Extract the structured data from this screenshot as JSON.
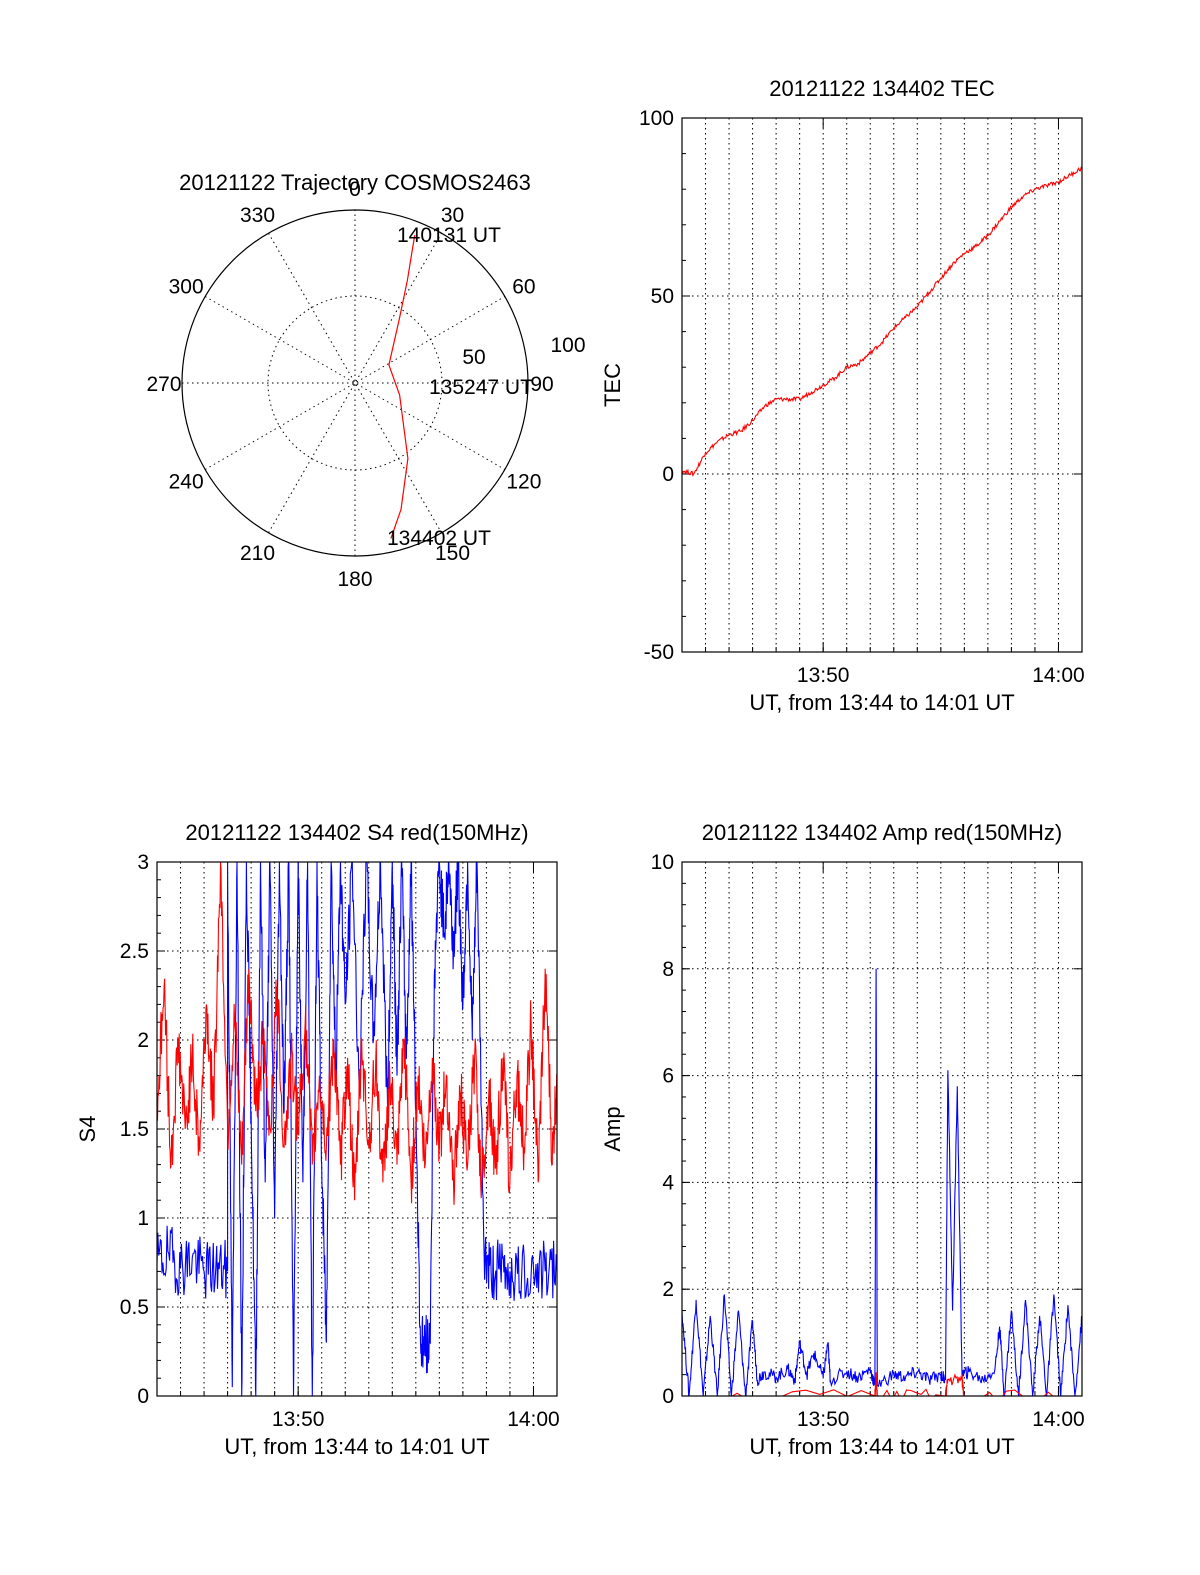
{
  "chart_data": [
    {
      "type": "scatter",
      "subtype": "polar-trajectory",
      "title": "20121122 Trajectory COSMOS2463",
      "angle_labels": [
        "0",
        "30",
        "60",
        "90",
        "120",
        "150",
        "180",
        "210",
        "240",
        "270",
        "300",
        "330"
      ],
      "radial_labels": [
        "50",
        "100"
      ],
      "start_label": "134402 UT",
      "mid_label": "135247 UT",
      "end_label": "140131 UT",
      "trajectory": [
        {
          "az": 167,
          "el": 7
        },
        {
          "az": 160,
          "el": 20
        },
        {
          "az": 145,
          "el": 42
        },
        {
          "az": 105,
          "el": 66
        },
        {
          "az": 62,
          "el": 70
        },
        {
          "az": 35,
          "el": 50
        },
        {
          "az": 27,
          "el": 30
        },
        {
          "az": 23,
          "el": 13
        },
        {
          "az": 22,
          "el": 7
        }
      ],
      "series_color": "#ff0000"
    },
    {
      "type": "line",
      "title": "20121122 134402 TEC",
      "ylabel": "TEC",
      "xlabel": "UT, from 13:44 to 14:01 UT",
      "x_ticks": [
        {
          "v": 50,
          "label": "13:50"
        },
        {
          "v": 60,
          "label": "14:00"
        }
      ],
      "y_ticks": [
        "-50",
        "0",
        "50",
        "100"
      ],
      "xlim": [
        44,
        61
      ],
      "ylim": [
        -50,
        100
      ],
      "grid": true,
      "series": [
        {
          "color": "#ff0000",
          "points": [
            [
              44.0,
              1
            ],
            [
              44.5,
              0
            ],
            [
              45.0,
              6
            ],
            [
              45.5,
              9
            ],
            [
              46.0,
              11
            ],
            [
              46.5,
              12
            ],
            [
              47.0,
              15
            ],
            [
              47.5,
              19
            ],
            [
              48.0,
              21
            ],
            [
              48.5,
              21
            ],
            [
              49.0,
              21
            ],
            [
              49.5,
              23
            ],
            [
              50.0,
              25
            ],
            [
              50.5,
              27
            ],
            [
              51.0,
              30
            ],
            [
              51.5,
              31
            ],
            [
              52.0,
              34
            ],
            [
              52.5,
              37
            ],
            [
              53.0,
              41
            ],
            [
              53.5,
              44
            ],
            [
              54.0,
              47
            ],
            [
              54.5,
              51
            ],
            [
              55.0,
              55
            ],
            [
              55.5,
              59
            ],
            [
              56.0,
              62
            ],
            [
              56.5,
              64
            ],
            [
              57.0,
              67
            ],
            [
              57.5,
              71
            ],
            [
              58.0,
              75
            ],
            [
              58.5,
              78
            ],
            [
              59.0,
              80
            ],
            [
              59.5,
              81
            ],
            [
              60.0,
              82
            ],
            [
              60.5,
              84
            ],
            [
              61.0,
              86
            ]
          ]
        }
      ]
    },
    {
      "type": "line",
      "title": "20121122 134402 S4 red(150MHz)",
      "ylabel": "S4",
      "xlabel": "UT, from 13:44 to 14:01 UT",
      "x_ticks": [
        {
          "v": 50,
          "label": "13:50"
        },
        {
          "v": 60,
          "label": "14:00"
        }
      ],
      "y_ticks": [
        "0",
        "0.5",
        "1",
        "1.5",
        "2",
        "2.5",
        "3"
      ],
      "xlim": [
        44,
        61
      ],
      "ylim": [
        0,
        3
      ],
      "grid": true,
      "series": [
        {
          "color": "#0000ff",
          "points": [
            [
              44.0,
              0.75
            ],
            [
              44.5,
              0.8
            ],
            [
              45.0,
              0.72
            ],
            [
              45.5,
              0.78
            ],
            [
              46.0,
              0.7
            ],
            [
              46.5,
              0.72
            ],
            [
              47.0,
              0.7
            ],
            [
              47.0,
              3.0
            ],
            [
              47.2,
              0.05
            ],
            [
              47.4,
              3.0
            ],
            [
              47.6,
              0.0
            ],
            [
              47.8,
              3.0
            ],
            [
              48.0,
              1.6
            ],
            [
              48.2,
              0.0
            ],
            [
              48.4,
              3.0
            ],
            [
              48.6,
              1.2
            ],
            [
              48.8,
              3.0
            ],
            [
              49.0,
              1.0
            ],
            [
              49.2,
              3.0
            ],
            [
              49.4,
              1.6
            ],
            [
              49.6,
              3.0
            ],
            [
              49.8,
              0.0
            ],
            [
              50.0,
              3.0
            ],
            [
              50.2,
              1.2
            ],
            [
              50.4,
              3.0
            ],
            [
              50.6,
              0.0
            ],
            [
              50.8,
              3.0
            ],
            [
              51.0,
              1.3
            ],
            [
              51.2,
              0.3
            ],
            [
              51.4,
              3.0
            ],
            [
              51.6,
              1.8
            ],
            [
              51.8,
              3.0
            ],
            [
              52.0,
              2.2
            ],
            [
              52.3,
              3.0
            ],
            [
              52.6,
              1.7
            ],
            [
              52.9,
              3.0
            ],
            [
              53.2,
              2.0
            ],
            [
              53.5,
              3.0
            ],
            [
              53.8,
              1.6
            ],
            [
              54.0,
              3.0
            ],
            [
              54.2,
              1.8
            ],
            [
              54.4,
              3.0
            ],
            [
              54.6,
              1.9
            ],
            [
              54.8,
              3.0
            ],
            [
              55.0,
              1.6
            ],
            [
              55.2,
              0.3
            ],
            [
              55.4,
              0.28
            ],
            [
              55.6,
              0.3
            ],
            [
              55.8,
              2.4
            ],
            [
              56.0,
              3.0
            ],
            [
              56.2,
              2.6
            ],
            [
              56.4,
              3.0
            ],
            [
              56.6,
              2.5
            ],
            [
              56.8,
              3.0
            ],
            [
              57.0,
              2.2
            ],
            [
              57.2,
              3.0
            ],
            [
              57.4,
              2.0
            ],
            [
              57.6,
              3.0
            ],
            [
              57.9,
              0.8
            ],
            [
              58.2,
              0.7
            ],
            [
              58.6,
              0.72
            ],
            [
              59.0,
              0.7
            ],
            [
              59.5,
              0.68
            ],
            [
              60.0,
              0.72
            ],
            [
              60.5,
              0.7
            ],
            [
              61.0,
              0.7
            ]
          ]
        },
        {
          "color": "#ff0000",
          "points": [
            [
              44.0,
              1.6
            ],
            [
              44.3,
              2.3
            ],
            [
              44.6,
              1.3
            ],
            [
              44.9,
              2.0
            ],
            [
              45.2,
              1.5
            ],
            [
              45.5,
              1.9
            ],
            [
              45.8,
              1.4
            ],
            [
              46.1,
              2.2
            ],
            [
              46.4,
              1.6
            ],
            [
              46.7,
              3.0
            ],
            [
              47.0,
              1.5
            ],
            [
              47.3,
              2.1
            ],
            [
              47.6,
              1.3
            ],
            [
              47.9,
              2.4
            ],
            [
              48.2,
              1.6
            ],
            [
              48.5,
              2.0
            ],
            [
              48.8,
              1.5
            ],
            [
              49.1,
              2.3
            ],
            [
              49.4,
              1.4
            ],
            [
              49.7,
              1.9
            ],
            [
              50.0,
              1.5
            ],
            [
              50.3,
              2.1
            ],
            [
              50.6,
              1.3
            ],
            [
              50.9,
              1.8
            ],
            [
              51.2,
              1.4
            ],
            [
              51.5,
              2.0
            ],
            [
              51.8,
              1.3
            ],
            [
              52.1,
              1.9
            ],
            [
              52.4,
              1.1
            ],
            [
              52.7,
              2.0
            ],
            [
              53.0,
              1.4
            ],
            [
              53.3,
              1.9
            ],
            [
              53.6,
              1.2
            ],
            [
              53.9,
              1.8
            ],
            [
              54.2,
              1.3
            ],
            [
              54.5,
              2.0
            ],
            [
              54.8,
              1.2
            ],
            [
              55.1,
              1.8
            ],
            [
              55.4,
              1.3
            ],
            [
              55.7,
              1.9
            ],
            [
              56.0,
              1.4
            ],
            [
              56.3,
              1.8
            ],
            [
              56.6,
              1.2
            ],
            [
              56.9,
              1.7
            ],
            [
              57.2,
              1.3
            ],
            [
              57.5,
              1.9
            ],
            [
              57.8,
              1.2
            ],
            [
              58.1,
              1.7
            ],
            [
              58.4,
              1.3
            ],
            [
              58.7,
              1.9
            ],
            [
              59.0,
              1.2
            ],
            [
              59.3,
              1.8
            ],
            [
              59.6,
              1.4
            ],
            [
              59.9,
              2.1
            ],
            [
              60.2,
              1.2
            ],
            [
              60.5,
              2.4
            ],
            [
              60.8,
              1.3
            ],
            [
              61.0,
              1.8
            ]
          ]
        }
      ]
    },
    {
      "type": "line",
      "title": "20121122 134402 Amp red(150MHz)",
      "ylabel": "Amp",
      "xlabel": "UT, from 13:44 to 14:01 UT",
      "x_ticks": [
        {
          "v": 50,
          "label": "13:50"
        },
        {
          "v": 60,
          "label": "14:00"
        }
      ],
      "y_ticks": [
        "0",
        "2",
        "4",
        "6",
        "8",
        "10"
      ],
      "xlim": [
        44,
        61
      ],
      "ylim": [
        0,
        10
      ],
      "grid": true,
      "series": [
        {
          "color": "#0000ff",
          "points": [
            [
              44.0,
              1.6
            ],
            [
              44.3,
              0.0
            ],
            [
              44.6,
              1.8
            ],
            [
              44.9,
              0.0
            ],
            [
              45.2,
              1.5
            ],
            [
              45.5,
              0.0
            ],
            [
              45.8,
              1.9
            ],
            [
              46.1,
              0.0
            ],
            [
              46.4,
              1.6
            ],
            [
              46.7,
              0.0
            ],
            [
              47.0,
              1.4
            ],
            [
              47.2,
              0.3
            ],
            [
              47.5,
              0.45
            ],
            [
              48.0,
              0.35
            ],
            [
              48.5,
              0.5
            ],
            [
              48.8,
              0.3
            ],
            [
              49.0,
              1.0
            ],
            [
              49.3,
              0.4
            ],
            [
              49.6,
              0.8
            ],
            [
              50.0,
              0.35
            ],
            [
              50.2,
              1.0
            ],
            [
              50.3,
              0.3
            ],
            [
              51.0,
              0.45
            ],
            [
              51.5,
              0.35
            ],
            [
              52.0,
              0.5
            ],
            [
              52.2,
              0.2
            ],
            [
              52.25,
              8.0
            ],
            [
              52.3,
              0.2
            ],
            [
              53.0,
              0.4
            ],
            [
              53.5,
              0.35
            ],
            [
              54.0,
              0.45
            ],
            [
              54.5,
              0.3
            ],
            [
              55.0,
              0.4
            ],
            [
              55.2,
              0.3
            ],
            [
              55.3,
              6.1
            ],
            [
              55.5,
              1.6
            ],
            [
              55.7,
              5.8
            ],
            [
              55.9,
              0.4
            ],
            [
              56.2,
              0.45
            ],
            [
              56.8,
              0.3
            ],
            [
              57.3,
              0.5
            ],
            [
              57.5,
              1.3
            ],
            [
              57.7,
              0.0
            ],
            [
              58.0,
              1.6
            ],
            [
              58.3,
              0.0
            ],
            [
              58.6,
              1.8
            ],
            [
              58.9,
              0.0
            ],
            [
              59.2,
              1.5
            ],
            [
              59.5,
              0.0
            ],
            [
              59.8,
              1.9
            ],
            [
              60.1,
              0.0
            ],
            [
              60.4,
              1.7
            ],
            [
              60.7,
              0.0
            ],
            [
              61.0,
              1.5
            ]
          ]
        },
        {
          "color": "#ff0000",
          "points": [
            [
              44.0,
              0.0
            ],
            [
              52.2,
              0.0
            ],
            [
              52.25,
              0.35
            ],
            [
              52.3,
              0.0
            ],
            [
              55.2,
              0.0
            ],
            [
              55.3,
              0.3
            ],
            [
              55.9,
              0.3
            ],
            [
              56.0,
              0.0
            ],
            [
              61.0,
              0.0
            ]
          ]
        }
      ]
    }
  ]
}
